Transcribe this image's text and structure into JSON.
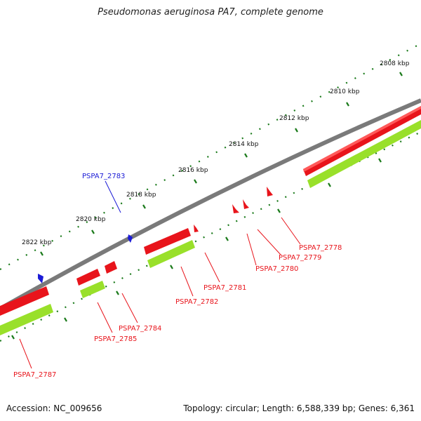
{
  "title": "Pseudomonas aeruginosa PA7, complete genome",
  "footer": {
    "accession": "Accession: NC_009656",
    "stats": "Topology: circular; Length: 6,588,339 bp; Genes: 6,361"
  },
  "colors": {
    "backbone": "#7a7a7a",
    "cds_forward": "#e8141b",
    "cds_reverse_track": "#99e02a",
    "gene_reverse": "#1b1bd6",
    "ticks": "#1a7a1a"
  },
  "ruler": {
    "unit": "kbp",
    "labels": [
      "2808 kbp",
      "2810 kbp",
      "2812 kbp",
      "2814 kbp",
      "2816 kbp",
      "2818 kbp",
      "2820 kbp",
      "2822 kbp"
    ]
  },
  "genes": [
    {
      "id": "PSPA7_2778",
      "strand": "forward"
    },
    {
      "id": "PSPA7_2779",
      "strand": "forward"
    },
    {
      "id": "PSPA7_2780",
      "strand": "forward"
    },
    {
      "id": "PSPA7_2781",
      "strand": "forward"
    },
    {
      "id": "PSPA7_2782",
      "strand": "forward"
    },
    {
      "id": "PSPA7_2783",
      "strand": "reverse"
    },
    {
      "id": "PSPA7_2784",
      "strand": "forward"
    },
    {
      "id": "PSPA7_2785",
      "strand": "forward"
    },
    {
      "id": "PSPA7_2787",
      "strand": "forward"
    }
  ]
}
